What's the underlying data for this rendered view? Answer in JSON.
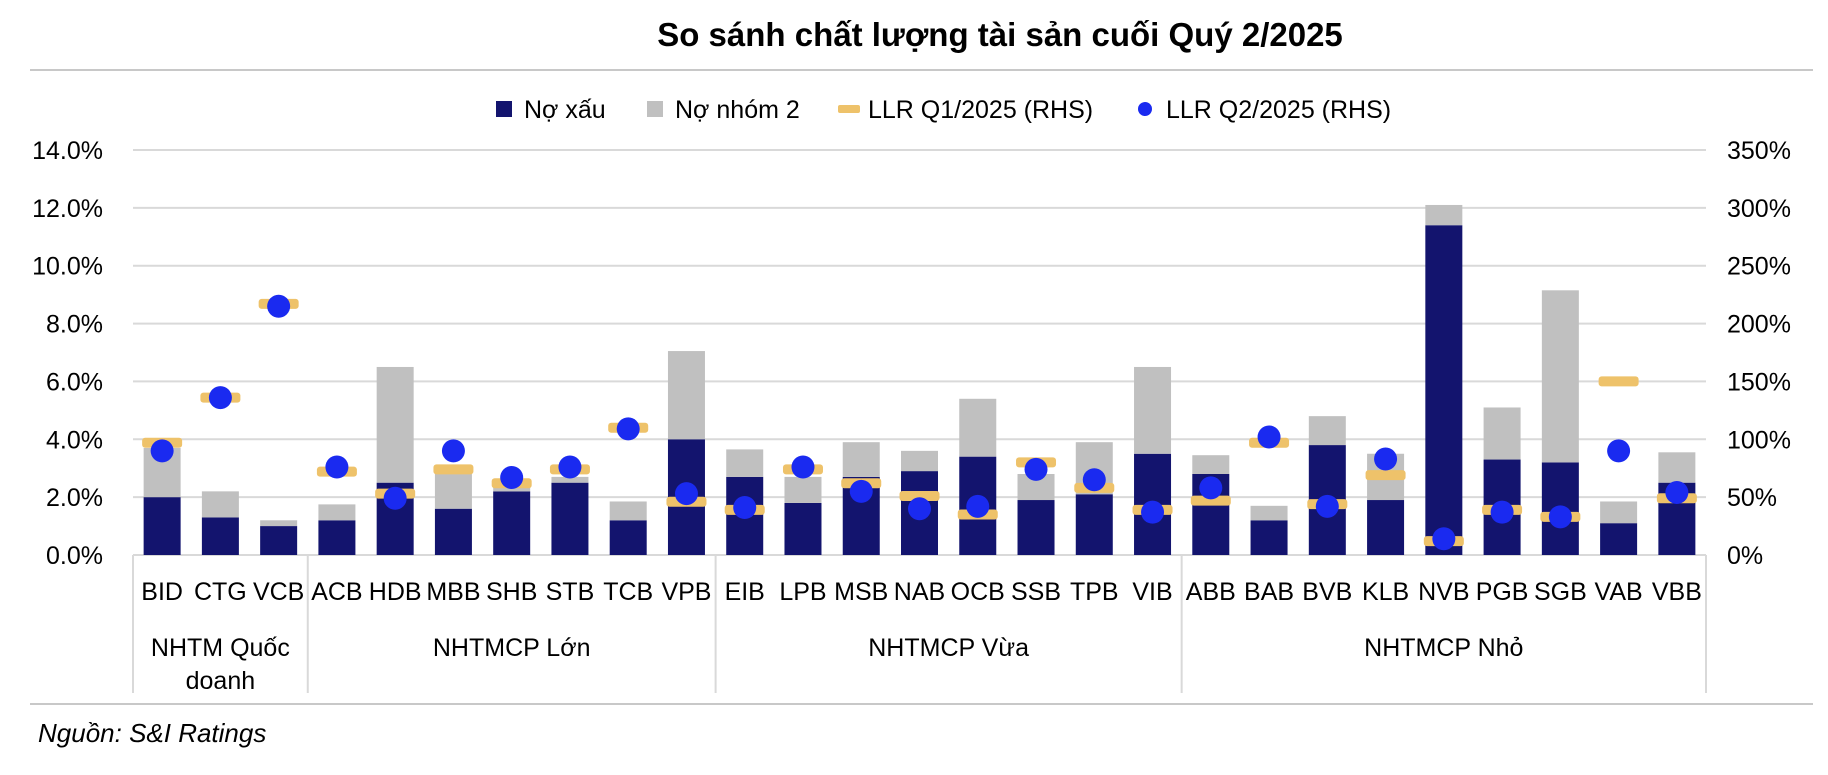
{
  "chart_data": {
    "type": "bar",
    "title": "So sánh chất lượng tài sản cuối Quý 2/2025",
    "source": "Nguồn: S&I Ratings",
    "legend_position": "top",
    "grid": true,
    "categories": [
      "BID",
      "CTG",
      "VCB",
      "ACB",
      "HDB",
      "MBB",
      "SHB",
      "STB",
      "TCB",
      "VPB",
      "EIB",
      "LPB",
      "MSB",
      "NAB",
      "OCB",
      "SSB",
      "TPB",
      "VIB",
      "ABB",
      "BAB",
      "BVB",
      "KLB",
      "NVB",
      "PGB",
      "SGB",
      "VAB",
      "VBB"
    ],
    "groups": [
      {
        "label": "NHTM Quốc doanh",
        "lines": [
          "NHTM Quốc",
          "doanh"
        ],
        "count": 3
      },
      {
        "label": "NHTMCP Lớn",
        "lines": [
          "NHTMCP Lớn"
        ],
        "count": 7
      },
      {
        "label": "NHTMCP Vừa",
        "lines": [
          "NHTMCP Vừa"
        ],
        "count": 8
      },
      {
        "label": "NHTMCP Nhỏ",
        "lines": [
          "NHTMCP Nhỏ"
        ],
        "count": 9
      }
    ],
    "y_left": {
      "ylim": [
        0,
        14
      ],
      "ticks": [
        "0.0%",
        "2.0%",
        "4.0%",
        "6.0%",
        "8.0%",
        "10.0%",
        "12.0%",
        "14.0%"
      ]
    },
    "y_right": {
      "ylim": [
        0,
        350
      ],
      "ticks": [
        "0%",
        "50%",
        "100%",
        "150%",
        "200%",
        "250%",
        "300%",
        "350%"
      ]
    },
    "series": [
      {
        "name": "Nợ xấu",
        "type": "bar",
        "axis": "left",
        "color": "#13146e",
        "values": [
          2.0,
          1.3,
          1.0,
          1.2,
          2.5,
          1.6,
          2.2,
          2.5,
          1.2,
          4.0,
          2.7,
          1.8,
          2.7,
          2.9,
          3.4,
          1.9,
          2.1,
          3.5,
          2.8,
          1.2,
          3.8,
          1.9,
          11.4,
          3.3,
          3.2,
          1.1,
          2.5
        ]
      },
      {
        "name": "Nợ nhóm 2",
        "type": "bar",
        "axis": "left",
        "color": "#c0c0c0",
        "values": [
          1.7,
          0.9,
          0.2,
          0.55,
          4.0,
          1.3,
          0.4,
          0.2,
          0.65,
          3.05,
          0.95,
          0.9,
          1.2,
          0.7,
          2.0,
          0.9,
          1.8,
          3.0,
          0.65,
          0.5,
          1.0,
          1.6,
          0.7,
          1.8,
          5.95,
          0.75,
          1.05
        ]
      },
      {
        "name": "LLR Q1/2025 (RHS)",
        "type": "dash",
        "axis": "right",
        "color": "#eec26a",
        "values": [
          97,
          136,
          217,
          72,
          53,
          74,
          62,
          74,
          110,
          46,
          39,
          74,
          62,
          51,
          35,
          80,
          58,
          39,
          47,
          97,
          44,
          69,
          12,
          39,
          33,
          150,
          49
        ]
      },
      {
        "name": "LLR Q2/2025 (RHS)",
        "type": "dot",
        "axis": "right",
        "color": "#1a2af0",
        "values": [
          90,
          136,
          215,
          76,
          49,
          90,
          67,
          76,
          109,
          53,
          41,
          76,
          55,
          40,
          42,
          74,
          65,
          37,
          58,
          102,
          42,
          83,
          14,
          37,
          33,
          90,
          54
        ]
      }
    ]
  }
}
